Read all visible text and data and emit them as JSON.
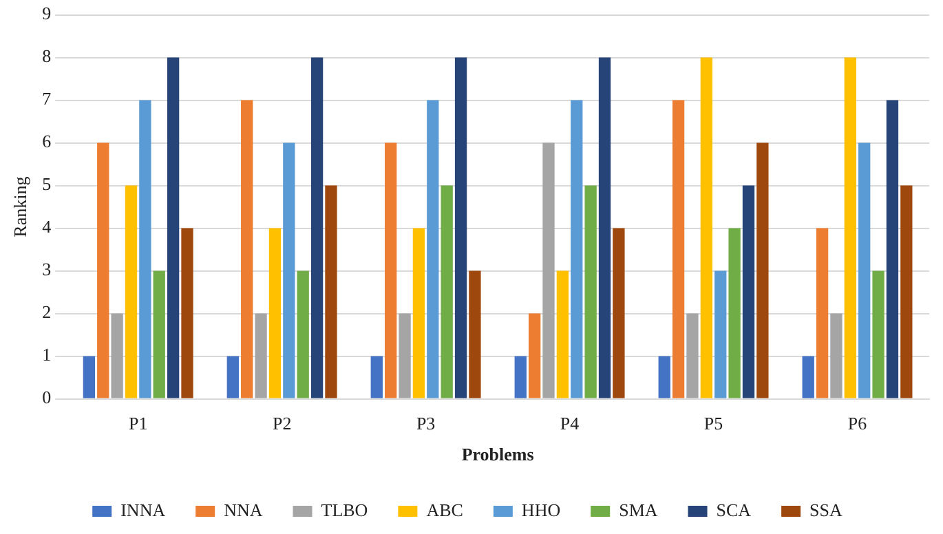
{
  "chart_data": {
    "type": "bar",
    "xlabel": "Problems",
    "ylabel": "Ranking",
    "categories": [
      "P1",
      "P2",
      "P3",
      "P4",
      "P5",
      "P6"
    ],
    "series": [
      {
        "name": "INNA",
        "color": "#4472c4",
        "values": [
          1,
          1,
          1,
          1,
          1,
          1
        ]
      },
      {
        "name": "NNA",
        "color": "#ed7d31",
        "values": [
          6,
          7,
          6,
          2,
          7,
          4
        ]
      },
      {
        "name": "TLBO",
        "color": "#a5a5a5",
        "values": [
          2,
          2,
          2,
          6,
          2,
          2
        ]
      },
      {
        "name": "ABC",
        "color": "#ffc000",
        "values": [
          5,
          4,
          4,
          3,
          8,
          8
        ]
      },
      {
        "name": "HHO",
        "color": "#5b9bd5",
        "values": [
          7,
          6,
          7,
          7,
          3,
          6
        ]
      },
      {
        "name": "SMA",
        "color": "#70ad47",
        "values": [
          3,
          3,
          5,
          5,
          4,
          3
        ]
      },
      {
        "name": "SCA",
        "color": "#264478",
        "values": [
          8,
          8,
          8,
          8,
          5,
          7
        ]
      },
      {
        "name": "SSA",
        "color": "#9e480e",
        "values": [
          4,
          5,
          3,
          4,
          6,
          5
        ]
      }
    ],
    "ylim": [
      0,
      9
    ],
    "yticks": [
      0,
      1,
      2,
      3,
      4,
      5,
      6,
      7,
      8,
      9
    ],
    "grid": "y",
    "legend": "bottom"
  }
}
